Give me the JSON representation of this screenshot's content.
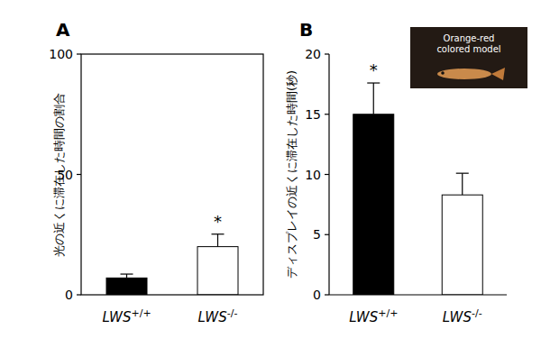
{
  "chart_data": [
    {
      "type": "bar",
      "title": "A",
      "y_label": "光の近くに滞在した時間の割合",
      "categories": [
        "LWS+/+",
        "LWS-/-"
      ],
      "values": [
        7,
        20
      ],
      "errors": [
        1.6,
        5.2
      ],
      "colors": [
        "#000000",
        "#ffffff"
      ],
      "ylim": [
        0,
        100
      ],
      "yticks": [
        0,
        50,
        100
      ],
      "annotations": [
        {
          "text": "*",
          "category": 1
        }
      ]
    },
    {
      "type": "bar",
      "title": "B",
      "y_label": "ディスプレイの近くに滞在した時間(秒)",
      "categories": [
        "LWS+/+",
        "LWS-/-"
      ],
      "values": [
        15,
        8.3
      ],
      "errors": [
        2.6,
        1.8
      ],
      "colors": [
        "#000000",
        "#ffffff"
      ],
      "ylim": [
        0,
        20
      ],
      "yticks": [
        0,
        5,
        10,
        15,
        20
      ],
      "annotations": [
        {
          "text": "*",
          "category": 0
        }
      ],
      "inset_label": "Orange-red colored model"
    }
  ]
}
